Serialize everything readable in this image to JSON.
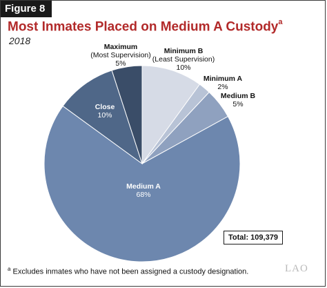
{
  "figure": {
    "label": "Figure 8",
    "title": "Most Inmates Placed on Medium A Custody",
    "title_superscript": "a",
    "subtitle": "2018",
    "total_label": "Total: 109,379",
    "footnote_marker": "a",
    "footnote_text": " Excludes inmates who have not been assigned a custody designation.",
    "logo": "LAO"
  },
  "chart_data": {
    "type": "pie",
    "title": "Most Inmates Placed on Medium A Custody",
    "slices": [
      {
        "name": "Minimum B",
        "sub": "(Least Supervision)",
        "pct": 10,
        "label": "10%",
        "color": "#d6dbe6"
      },
      {
        "name": "Minimum A",
        "sub": "",
        "pct": 2,
        "label": "2%",
        "color": "#b8c3d6"
      },
      {
        "name": "Medium B",
        "sub": "",
        "pct": 5,
        "label": "5%",
        "color": "#8fa1bf"
      },
      {
        "name": "Medium A",
        "sub": "",
        "pct": 68,
        "label": "68%",
        "color": "#6d87ae"
      },
      {
        "name": "Close",
        "sub": "",
        "pct": 10,
        "label": "10%",
        "color": "#4f6788"
      },
      {
        "name": "Maximum",
        "sub": "(Most Supervision)",
        "pct": 5,
        "label": "5%",
        "color": "#3a4d68"
      }
    ],
    "start": "12 o'clock",
    "direction": "clockwise"
  },
  "colors": {
    "title": "#b22a2a",
    "badge": "#1a1a1a",
    "inside_label": "#ffffff",
    "outside_label": "#111111"
  }
}
